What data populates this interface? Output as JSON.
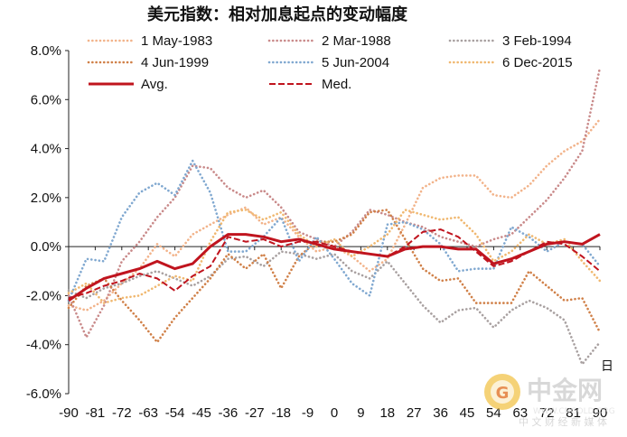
{
  "chart_data": {
    "type": "line",
    "title": "美元指数：相对加息起点的变动幅度",
    "xlabel": "日",
    "ylabel": "",
    "x_ticks": [
      "-90",
      "-81",
      "-72",
      "-63",
      "-54",
      "-45",
      "-36",
      "-27",
      "-18",
      "-9",
      "0",
      "9",
      "18",
      "27",
      "36",
      "45",
      "54",
      "63",
      "72",
      "81",
      "90"
    ],
    "xlim": [
      -90,
      90
    ],
    "ylim": [
      -6,
      8
    ],
    "y_ticks": [
      "-6.0%",
      "-4.0%",
      "-2.0%",
      "0.0%",
      "2.0%",
      "4.0%",
      "6.0%",
      "8.0%"
    ],
    "legend_position": "top",
    "series": [
      {
        "name": "1 May-1983",
        "color": "#f2b38a",
        "style": "dotted",
        "x": [
          -90,
          -84,
          -78,
          -72,
          -66,
          -60,
          -54,
          -48,
          -42,
          -36,
          -30,
          -24,
          -18,
          -12,
          -6,
          0,
          6,
          12,
          18,
          24,
          30,
          36,
          42,
          48,
          54,
          60,
          66,
          72,
          78,
          84,
          90
        ],
        "y": [
          -2.4,
          -2.6,
          -2.2,
          -1.5,
          -0.9,
          0.1,
          -0.4,
          0.5,
          0.9,
          1.3,
          1.6,
          0.9,
          1.2,
          0.4,
          -0.2,
          0.0,
          -0.4,
          -1.0,
          -0.5,
          0.9,
          2.4,
          2.8,
          2.9,
          2.9,
          2.1,
          2.0,
          2.5,
          3.3,
          3.9,
          4.3,
          5.2
        ]
      },
      {
        "name": "2 Mar-1988",
        "color": "#c98a8a",
        "style": "dotted",
        "x": [
          -90,
          -84,
          -78,
          -72,
          -66,
          -60,
          -54,
          -48,
          -42,
          -36,
          -30,
          -24,
          -18,
          -12,
          -6,
          0,
          6,
          12,
          18,
          24,
          30,
          36,
          42,
          48,
          54,
          60,
          66,
          72,
          78,
          84,
          90
        ],
        "y": [
          -2.0,
          -3.7,
          -2.4,
          -0.6,
          0.2,
          1.2,
          2.0,
          3.3,
          3.2,
          2.4,
          2.0,
          2.3,
          1.6,
          0.6,
          0.3,
          0.0,
          0.6,
          1.5,
          1.3,
          1.0,
          0.8,
          0.4,
          0.2,
          0.0,
          0.3,
          0.5,
          1.2,
          1.9,
          2.8,
          3.9,
          7.3
        ]
      },
      {
        "name": "3 Feb-1994",
        "color": "#a8a0a0",
        "style": "dotted",
        "x": [
          -90,
          -84,
          -78,
          -72,
          -66,
          -60,
          -54,
          -48,
          -42,
          -36,
          -30,
          -24,
          -18,
          -12,
          -6,
          0,
          6,
          12,
          18,
          24,
          30,
          36,
          42,
          48,
          54,
          60,
          66,
          72,
          78,
          84,
          90
        ],
        "y": [
          -1.8,
          -2.1,
          -1.7,
          -1.5,
          -1.2,
          -1.0,
          -1.3,
          -1.6,
          -1.2,
          -0.5,
          -0.4,
          -0.8,
          -0.2,
          -0.3,
          -0.5,
          -0.3,
          -1.0,
          -1.3,
          -0.6,
          -1.5,
          -2.4,
          -3.1,
          -2.6,
          -2.5,
          -3.3,
          -2.6,
          -2.2,
          -2.5,
          -3.0,
          -4.8,
          -3.9
        ]
      },
      {
        "name": "4 Jun-1999",
        "color": "#d08048",
        "style": "dotted",
        "x": [
          -90,
          -84,
          -78,
          -72,
          -66,
          -60,
          -54,
          -48,
          -42,
          -36,
          -30,
          -24,
          -18,
          -12,
          -6,
          0,
          6,
          12,
          18,
          24,
          30,
          36,
          42,
          48,
          54,
          60,
          66,
          72,
          78,
          84,
          90
        ],
        "y": [
          -2.5,
          -1.6,
          -1.3,
          -2.2,
          -3.0,
          -3.9,
          -2.9,
          -2.1,
          -1.3,
          -0.3,
          -0.9,
          -0.3,
          -1.7,
          -0.4,
          0.2,
          0.2,
          0.5,
          1.4,
          1.5,
          0.3,
          -0.9,
          -1.4,
          -1.3,
          -2.3,
          -2.3,
          -2.3,
          -1.0,
          -1.6,
          -2.2,
          -2.1,
          -3.5
        ]
      },
      {
        "name": "5 Jun-2004",
        "color": "#80a8d0",
        "style": "dotted",
        "x": [
          -90,
          -84,
          -78,
          -72,
          -66,
          -60,
          -54,
          -48,
          -42,
          -36,
          -30,
          -24,
          -18,
          -12,
          -6,
          0,
          6,
          12,
          18,
          24,
          30,
          36,
          42,
          48,
          54,
          60,
          66,
          72,
          78,
          84,
          90
        ],
        "y": [
          -2.2,
          -0.5,
          -0.6,
          1.2,
          2.2,
          2.6,
          2.1,
          3.5,
          2.2,
          -0.2,
          -0.2,
          0.4,
          1.2,
          -0.6,
          0.4,
          -0.5,
          -1.5,
          -2.0,
          0.9,
          1.0,
          0.7,
          0.1,
          -1.0,
          -0.9,
          -0.9,
          0.8,
          0.4,
          -0.2,
          0.2,
          0.1,
          -0.8
        ]
      },
      {
        "name": "6 Dec-2015",
        "color": "#f0b870",
        "style": "dotted",
        "x": [
          -90,
          -84,
          -78,
          -72,
          -66,
          -60,
          -54,
          -48,
          -42,
          -36,
          -30,
          -24,
          -18,
          -12,
          -6,
          0,
          6,
          12,
          18,
          24,
          30,
          36,
          42,
          48,
          54,
          60,
          66,
          72,
          78,
          84,
          90
        ],
        "y": [
          -1.9,
          -1.5,
          -2.3,
          -2.1,
          -2.0,
          -1.6,
          -1.2,
          -1.4,
          0.2,
          1.4,
          1.5,
          1.1,
          1.4,
          0.5,
          0.0,
          0.3,
          -0.4,
          0.0,
          0.5,
          1.5,
          1.3,
          1.1,
          1.2,
          0.5,
          -0.6,
          -0.2,
          0.5,
          0.1,
          0.3,
          -0.6,
          -1.4
        ]
      },
      {
        "name": "Avg.",
        "color": "#c0141e",
        "style": "solid",
        "x": [
          -90,
          -84,
          -78,
          -72,
          -66,
          -60,
          -54,
          -48,
          -42,
          -36,
          -30,
          -24,
          -18,
          -12,
          -6,
          0,
          6,
          12,
          18,
          24,
          30,
          36,
          42,
          48,
          54,
          60,
          66,
          72,
          78,
          84,
          90
        ],
        "y": [
          -2.2,
          -1.7,
          -1.3,
          -1.1,
          -0.9,
          -0.6,
          -0.9,
          -0.7,
          0.0,
          0.5,
          0.5,
          0.4,
          0.2,
          0.3,
          0.1,
          -0.1,
          -0.2,
          -0.3,
          -0.4,
          -0.1,
          0.0,
          0.0,
          -0.1,
          -0.1,
          -0.7,
          -0.5,
          -0.2,
          0.1,
          0.2,
          0.1,
          0.5
        ]
      },
      {
        "name": "Med.",
        "color": "#c0141e",
        "style": "dashed",
        "x": [
          -90,
          -84,
          -78,
          -72,
          -66,
          -60,
          -54,
          -48,
          -42,
          -36,
          -30,
          -24,
          -18,
          -12,
          -6,
          0,
          6,
          12,
          18,
          24,
          30,
          36,
          42,
          48,
          54,
          60,
          66,
          72,
          78,
          84,
          90
        ],
        "y": [
          -2.1,
          -1.9,
          -1.6,
          -1.4,
          -1.1,
          -1.3,
          -1.8,
          -1.2,
          -0.8,
          0.4,
          0.2,
          0.3,
          0.0,
          0.2,
          0.2,
          0.0,
          -0.2,
          -0.3,
          -0.4,
          0.0,
          0.6,
          0.7,
          0.4,
          -0.2,
          -0.8,
          -0.6,
          -0.2,
          0.2,
          0.1,
          -0.4,
          -1.0
        ]
      }
    ]
  },
  "watermark": {
    "brand": "中金网",
    "tagline": "中 文 财 经 新 媒 体",
    "url": "WWW.CNGOLD.ORG"
  }
}
